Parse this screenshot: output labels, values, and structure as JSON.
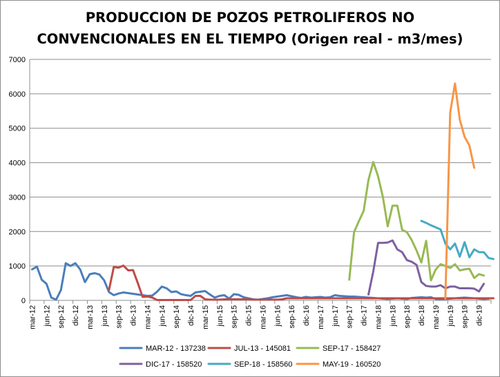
{
  "chart_data": {
    "type": "line",
    "title_lines": [
      "PRODUCCION DE POZOS PETROLIFEROS NO",
      "CONVENCIONALES EN EL TIEMPO (Origen real - m3/mes)"
    ],
    "xlabel": "",
    "ylabel": "",
    "ylim": [
      0,
      7000
    ],
    "yticks": [
      "0",
      "1000",
      "2000",
      "3000",
      "4000",
      "5000",
      "6000",
      "7000"
    ],
    "x_tick_labels": [
      "mar-12",
      "jun-12",
      "sep-12",
      "dic-12",
      "mar-13",
      "jun-13",
      "sep-13",
      "dic-13",
      "mar-14",
      "jun-14",
      "sep-14",
      "dic-14",
      "mar-15",
      "jun-15",
      "sep-15",
      "dic-15",
      "mar-16",
      "jun-16",
      "sep-16",
      "dic-16",
      "mar-17",
      "jun-17",
      "sep-17",
      "dic-17",
      "mar-18",
      "jun-18",
      "sep-18",
      "dic-18",
      "mar-19",
      "jun-19",
      "sep-19",
      "dic-19"
    ],
    "grid": "horizontal",
    "legend_position": "bottom",
    "series": [
      {
        "name": "MAR-12 - 137238",
        "color": "#4a7ebb",
        "start": 0,
        "values": [
          900,
          980,
          600,
          480,
          80,
          20,
          300,
          1080,
          1000,
          1080,
          900,
          530,
          760,
          790,
          750,
          580,
          240,
          150,
          200,
          230,
          210,
          190,
          170,
          150,
          130,
          140,
          250,
          400,
          350,
          240,
          260,
          180,
          150,
          130,
          230,
          250,
          270,
          170,
          80,
          130,
          150,
          50,
          180,
          160,
          90,
          60,
          30,
          20,
          40,
          60,
          90,
          110,
          130,
          150,
          120,
          90,
          70,
          100,
          80,
          90,
          100,
          80,
          90,
          150,
          130,
          120,
          110,
          110,
          100,
          90,
          80,
          70,
          60,
          50,
          40,
          50,
          60,
          50,
          40,
          70,
          80,
          90,
          80,
          90,
          40,
          30,
          40,
          50,
          60,
          70,
          80,
          70,
          60,
          50,
          40,
          50
        ]
      },
      {
        "name": "JUL-13 - 145081",
        "color": "#be4b48",
        "start": 16,
        "values": [
          300,
          970,
          950,
          1010,
          870,
          880,
          500,
          100,
          110,
          80,
          10,
          10,
          10,
          10,
          10,
          10,
          10,
          10,
          130,
          130,
          30,
          20,
          20,
          20,
          30,
          30,
          30,
          30,
          30,
          30,
          20,
          20,
          20,
          20,
          20,
          20,
          30,
          60,
          60,
          60,
          60,
          60,
          60,
          60,
          60,
          60,
          60,
          60,
          60,
          60,
          60,
          60,
          60,
          60,
          60,
          60,
          60,
          60,
          60,
          60,
          60,
          60,
          60,
          60,
          60,
          60,
          60,
          60,
          60,
          60,
          60,
          60,
          60,
          60,
          60,
          60,
          60,
          60,
          60,
          60,
          60
        ]
      },
      {
        "name": "SEP-17 - 158427",
        "color": "#98b954",
        "start": 66,
        "values": [
          600,
          1980,
          2300,
          2600,
          3500,
          4020,
          3600,
          3000,
          2150,
          2750,
          2750,
          2050,
          1980,
          1750,
          1450,
          1100,
          1730,
          580,
          900,
          1050,
          1000,
          940,
          1050,
          870,
          900,
          920,
          650,
          760,
          720
        ]
      },
      {
        "name": "DIC-17 - 158520",
        "color": "#7d60a0",
        "start": 70,
        "values": [
          170,
          840,
          1670,
          1670,
          1680,
          1740,
          1480,
          1400,
          1170,
          1120,
          1030,
          530,
          420,
          400,
          400,
          440,
          350,
          400,
          400,
          350,
          350,
          350,
          340,
          260,
          480
        ]
      },
      {
        "name": "SEP-18 - 158560",
        "color": "#46aac5",
        "start": 81,
        "values": [
          2310,
          2250,
          2180,
          2120,
          2060,
          1650,
          1480,
          1650,
          1270,
          1690,
          1250,
          1480,
          1400,
          1400,
          1230,
          1200
        ]
      },
      {
        "name": "MAY-19 - 160520",
        "color": "#f79646",
        "start": 86,
        "values": [
          50,
          5450,
          6300,
          5250,
          4750,
          4500,
          3850
        ]
      }
    ]
  }
}
